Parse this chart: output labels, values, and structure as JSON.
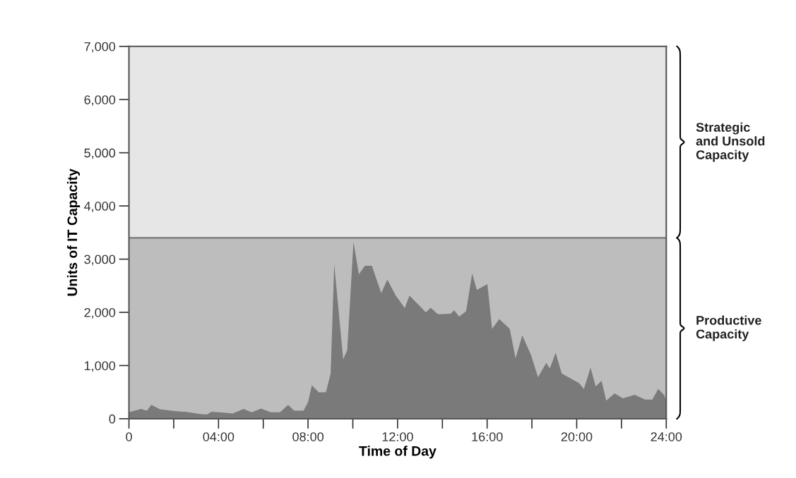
{
  "chart_data": {
    "type": "area",
    "xlabel": "Time of Day",
    "ylabel": "Units of IT Capacity",
    "x": [
      0,
      0.54,
      0.8,
      1.0,
      1.38,
      2.1,
      2.53,
      3.17,
      3.48,
      3.69,
      4.22,
      4.64,
      5.12,
      5.48,
      5.9,
      6.33,
      6.75,
      7.11,
      7.38,
      7.8,
      8.0,
      8.17,
      8.48,
      8.8,
      9.01,
      9.17,
      9.57,
      9.75,
      10.03,
      10.27,
      10.54,
      10.85,
      11.27,
      11.54,
      11.9,
      12.32,
      12.53,
      13.26,
      13.48,
      13.8,
      14.38,
      14.52,
      14.75,
      15.06,
      15.33,
      15.54,
      16.01,
      16.22,
      16.54,
      17.01,
      17.27,
      17.57,
      17.96,
      18.27,
      18.64,
      18.8,
      19.06,
      19.33,
      20.11,
      20.32,
      20.62,
      20.85,
      21.11,
      21.32,
      21.69,
      22.06,
      22.59,
      23.06,
      23.38,
      23.64,
      23.9,
      24
    ],
    "series": [
      {
        "color": "#7a7a7a",
        "values": [
          120,
          185,
          150,
          260,
          177,
          140,
          130,
          90,
          80,
          130,
          115,
          100,
          185,
          120,
          190,
          120,
          120,
          260,
          150,
          150,
          310,
          630,
          495,
          500,
          850,
          2900,
          1115,
          1290,
          3325,
          2715,
          2875,
          2875,
          2360,
          2615,
          2330,
          2080,
          2315,
          2000,
          2085,
          1965,
          1975,
          2040,
          1920,
          2020,
          2730,
          2420,
          2530,
          1690,
          1875,
          1690,
          1135,
          1565,
          1200,
          780,
          1050,
          945,
          1240,
          850,
          670,
          560,
          960,
          605,
          715,
          340,
          475,
          385,
          450,
          360,
          360,
          560,
          450,
          340
        ]
      }
    ],
    "xlim": [
      0,
      24
    ],
    "xticks": [
      0,
      {
        "value": 2,
        "label": null
      },
      {
        "value": 4,
        "label": "04:00"
      },
      {
        "value": 6,
        "label": null
      },
      {
        "value": 8,
        "label": "08:00"
      },
      {
        "value": 10,
        "label": null
      },
      {
        "value": 12,
        "label": "12:00"
      },
      {
        "value": 14,
        "label": null
      },
      {
        "value": 16,
        "label": "16:00"
      },
      {
        "value": 18,
        "label": null
      },
      {
        "value": 20,
        "label": "20:00"
      },
      {
        "value": 22,
        "label": null
      },
      {
        "value": 24,
        "label": "24:00"
      }
    ],
    "ylim": [
      0,
      7000
    ],
    "yticks": [
      0,
      {
        "value": 1000,
        "label": "1,000"
      },
      {
        "value": 2000,
        "label": "2,000"
      },
      {
        "value": 3000,
        "label": "3,000"
      },
      {
        "value": 4000,
        "label": "4,000"
      },
      {
        "value": 5000,
        "label": "5,000"
      },
      {
        "value": 6000,
        "label": "6,000"
      },
      {
        "value": 7000,
        "label": "7,000"
      }
    ],
    "bands": [
      {
        "axis": "y",
        "from": 0,
        "to": 3400,
        "label": "Productive\nCapacity",
        "color": "#bdbdbd"
      },
      {
        "axis": "y",
        "from": 3400,
        "to": 7000,
        "label": "Strategic\nand Unsold\nCapacity",
        "color": "#e6e6e6"
      }
    ],
    "ref_lines": [
      {
        "axis": "y",
        "value": 3400,
        "color": "#777777"
      }
    ],
    "grid": false
  }
}
